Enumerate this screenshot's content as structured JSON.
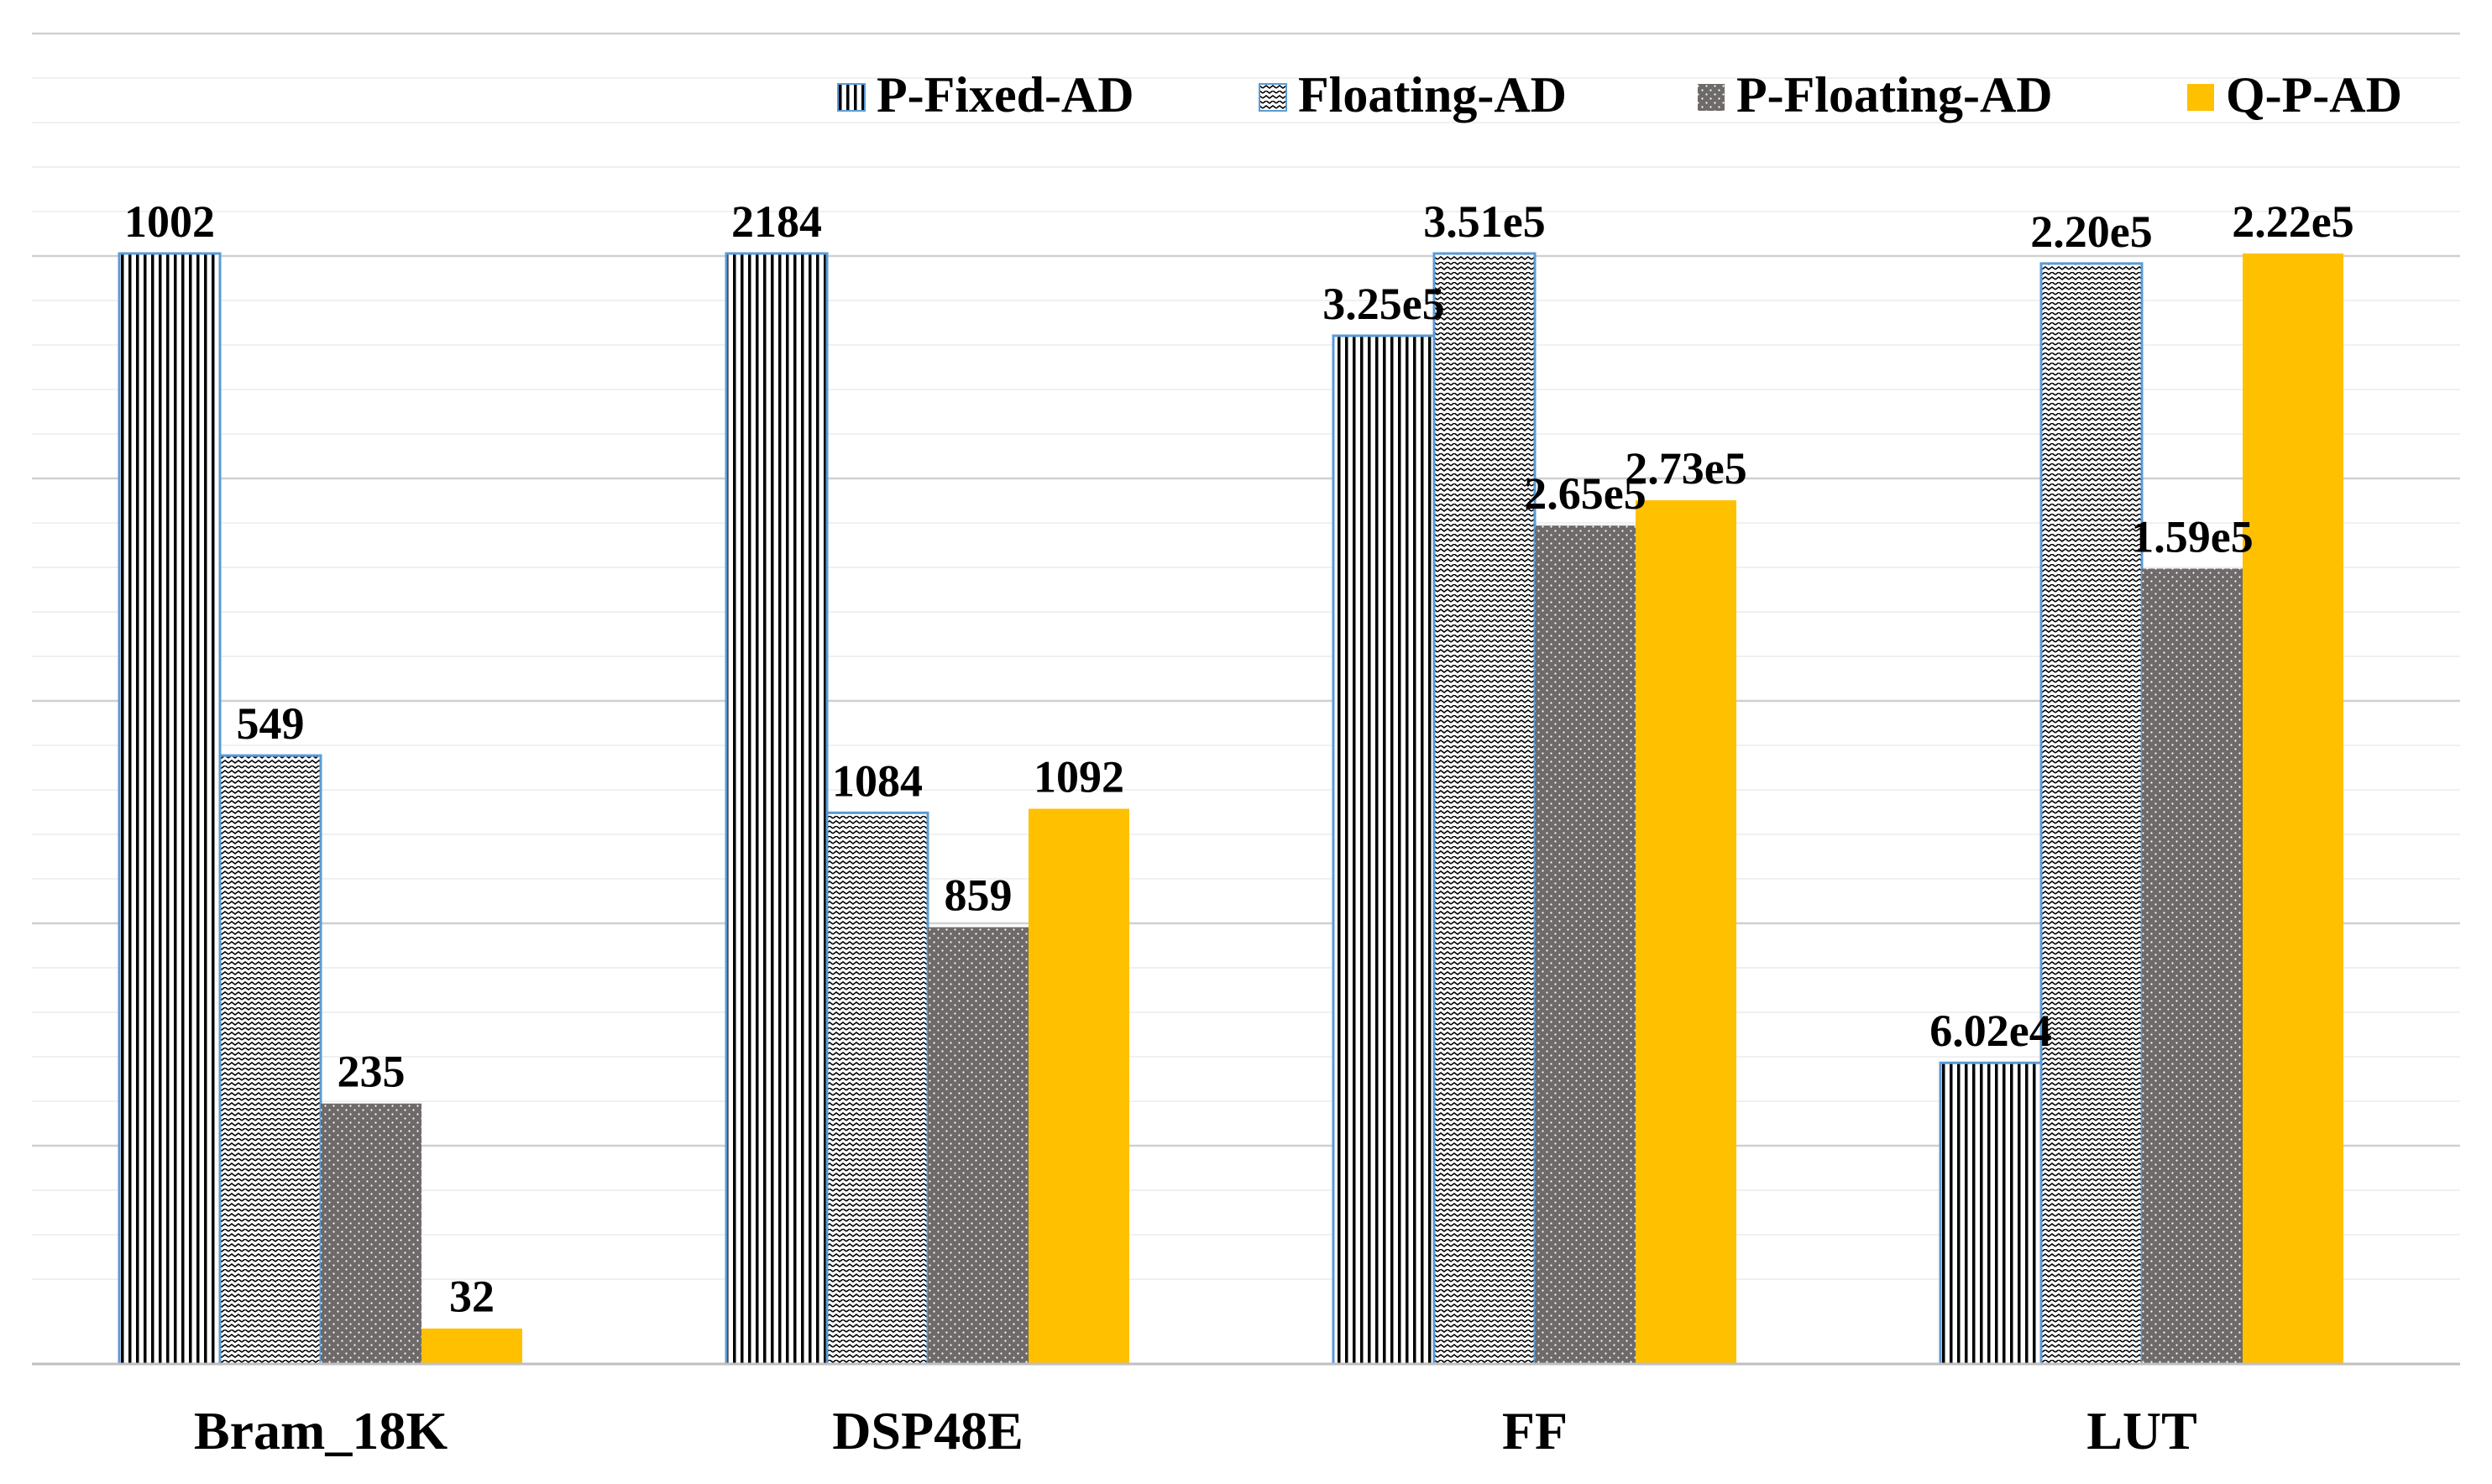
{
  "chart_data": {
    "type": "bar",
    "title": "",
    "xlabel": "",
    "ylabel": "",
    "scaling": "each category normalized to its own maximum",
    "categories": [
      "Bram_18K",
      "DSP48E",
      "FF",
      "LUT"
    ],
    "series": [
      {
        "name": "P-Fixed-AD",
        "pattern": "vertical-lines",
        "color": "#000000",
        "values": [
          1002,
          2184,
          325000,
          60200
        ],
        "labels": [
          "1002",
          "2184",
          "3.25e5",
          "6.02e4"
        ]
      },
      {
        "name": "Floating-AD",
        "pattern": "zigzag",
        "color": "#000000",
        "values": [
          549,
          1084,
          351000,
          220000
        ],
        "labels": [
          "549",
          "1084",
          "3.51e5",
          "2.20e5"
        ]
      },
      {
        "name": "P-Floating-AD",
        "pattern": "dotted",
        "color": "#6f6a6a",
        "values": [
          235,
          859,
          265000,
          159000
        ],
        "labels": [
          "235",
          "859",
          "2.65e5",
          "1.59e5"
        ]
      },
      {
        "name": "Q-P-AD",
        "pattern": "solid",
        "color": "#ffc000",
        "values": [
          32,
          1092,
          273000,
          222000
        ],
        "labels": [
          "32",
          "1092",
          "2.73e5",
          "2.22e5"
        ]
      }
    ],
    "grid": true,
    "legend": "top-right"
  }
}
